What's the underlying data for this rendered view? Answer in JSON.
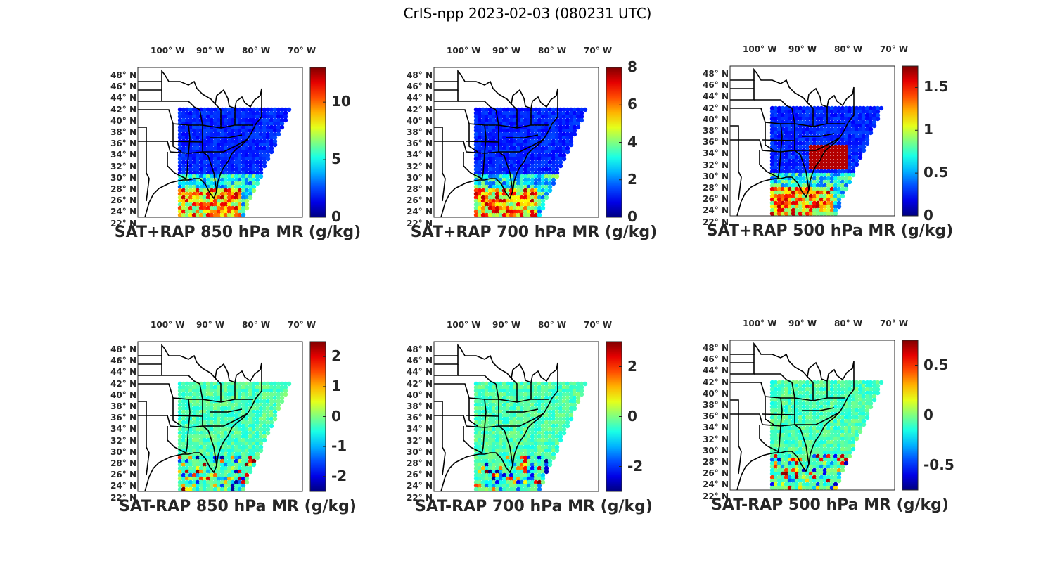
{
  "figure": {
    "title": "CrIS-npp 2023-02-03 (080231 UTC)"
  },
  "lon_labels": [
    "100° W",
    "90° W",
    "80° W",
    "70° W"
  ],
  "lat_labels": [
    "48° N",
    "46° N",
    "44° N",
    "42° N",
    "40° N",
    "38° N",
    "36° N",
    "34° N",
    "32° N",
    "30° N",
    "28° N",
    "26° N",
    "24° N",
    "22° N"
  ],
  "colors": {
    "colormap": "jet",
    "border": "#000000",
    "text": "#262626"
  },
  "panels": [
    {
      "title": "SAT+RAP 850 hPa MR (g/kg)",
      "clim": [
        0,
        13
      ],
      "ticks": [
        "0",
        "5",
        "10"
      ],
      "tick_values": [
        0,
        5,
        10
      ]
    },
    {
      "title": "SAT+RAP 700 hPa MR (g/kg)",
      "clim": [
        0,
        8
      ],
      "ticks": [
        "0",
        "2",
        "4",
        "6",
        "8"
      ],
      "tick_values": [
        0,
        2,
        4,
        6,
        8
      ]
    },
    {
      "title": "SAT+RAP 500 hPa MR (g/kg)",
      "clim": [
        0,
        1.75
      ],
      "ticks": [
        "0",
        "0.5",
        "1",
        "1.5"
      ],
      "tick_values": [
        0,
        0.5,
        1,
        1.5
      ]
    },
    {
      "title": "SAT-RAP 850 hPa MR (g/kg)",
      "clim": [
        -2.5,
        2.5
      ],
      "ticks": [
        "-2",
        "-1",
        "0",
        "1",
        "2"
      ],
      "tick_values": [
        -2,
        -1,
        0,
        1,
        2
      ]
    },
    {
      "title": "SAT-RAP 700 hPa MR (g/kg)",
      "clim": [
        -3,
        3
      ],
      "ticks": [
        "-2",
        "0",
        "2"
      ],
      "tick_values": [
        -2,
        0,
        2
      ]
    },
    {
      "title": "SAT-RAP 500 hPa MR (g/kg)",
      "clim": [
        -0.75,
        0.75
      ],
      "ticks": [
        "-0.5",
        "0",
        "0.5"
      ],
      "tick_values": [
        -0.5,
        0,
        0.5
      ]
    }
  ]
}
